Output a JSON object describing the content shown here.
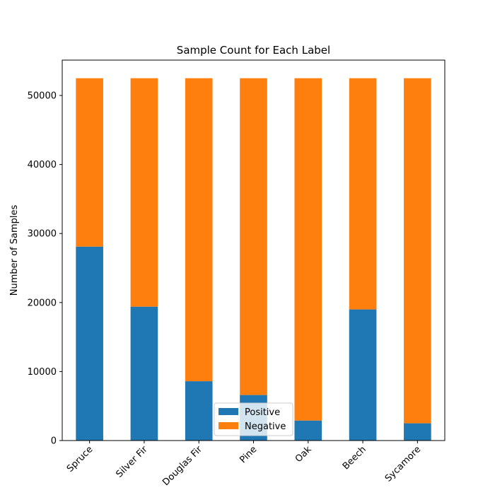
{
  "chart_data": {
    "type": "bar",
    "stacked": true,
    "title": "Sample Count for Each Label",
    "xlabel": "",
    "ylabel": "Number of Samples",
    "categories": [
      "Spruce",
      "Silver Fir",
      "Douglas Fir",
      "Pine",
      "Oak",
      "Beech",
      "Sycamore"
    ],
    "series": [
      {
        "name": "Positive",
        "color": "#1f77b4",
        "values": [
          28100,
          19400,
          8600,
          6600,
          2900,
          19000,
          2500
        ]
      },
      {
        "name": "Negative",
        "color": "#ff7f0e",
        "values": [
          24400,
          33100,
          43900,
          45900,
          49600,
          33500,
          50000
        ]
      }
    ],
    "ylim": [
      0,
      55125
    ],
    "yticks": [
      0,
      10000,
      20000,
      30000,
      40000,
      50000
    ],
    "grid": false,
    "legend_position": "bottom-center",
    "x_tick_rotation": 45
  }
}
